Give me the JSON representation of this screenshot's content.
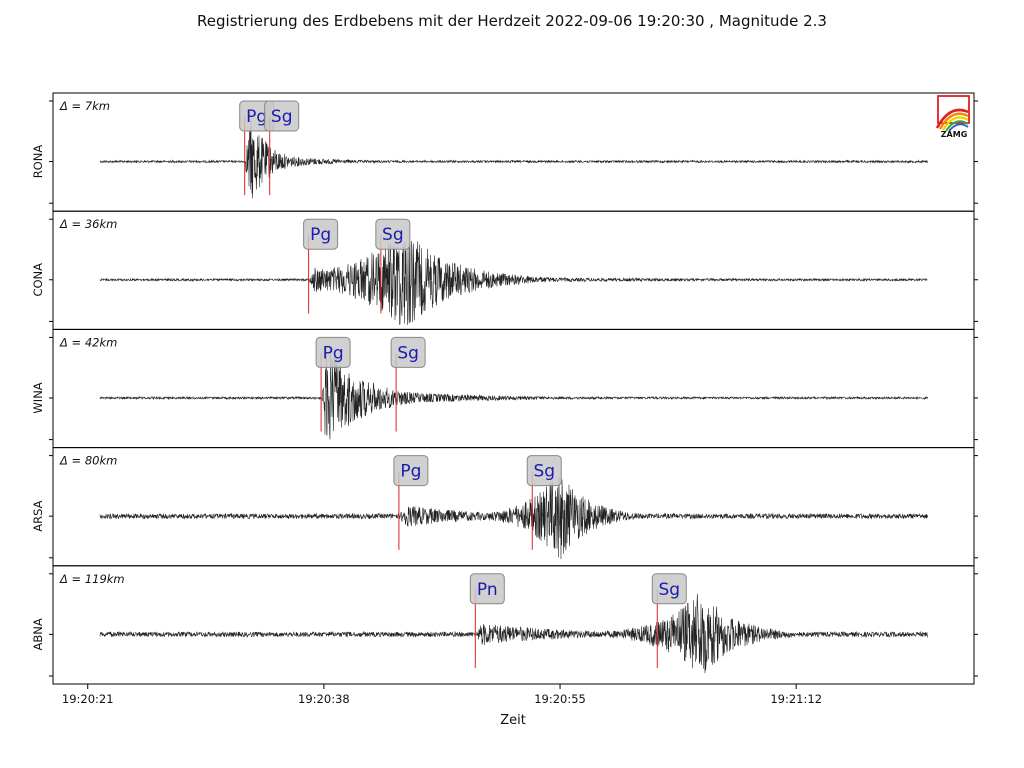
{
  "title": "Registrierung des Erdbebens mit der Herdzeit 2022-09-06 19:20:30 , Magnitude 2.3",
  "logo": {
    "text": "ZAMG"
  },
  "chart_data": {
    "type": "line",
    "xlabel": "Zeit",
    "x_ticks": [
      "19:20:21",
      "19:20:38",
      "19:20:55",
      "19:21:12"
    ],
    "x_tick_seconds": [
      0,
      17,
      34,
      51
    ],
    "x_range_seconds": [
      -2.5,
      63.8
    ],
    "trace_range_seconds": [
      0.9,
      60.4
    ],
    "panels": [
      {
        "station": "RONA",
        "distance": "Δ = 7km",
        "picks": [
          {
            "phase": "Pg",
            "t": 11.3
          },
          {
            "phase": "Sg",
            "t": 13.1
          }
        ],
        "onset": 11.3,
        "peak_t": 11.4,
        "coda": 4,
        "pre_noise": 0.02,
        "scale": 1.0
      },
      {
        "station": "CONA",
        "distance": "Δ = 36km",
        "picks": [
          {
            "phase": "Pg",
            "t": 15.9
          },
          {
            "phase": "Sg",
            "t": 21.1
          }
        ],
        "onset": 15.9,
        "peak_t": 22.5,
        "coda": 10,
        "pre_noise": 0.02,
        "scale": 1.0
      },
      {
        "station": "WINA",
        "distance": "Δ = 42km",
        "picks": [
          {
            "phase": "Pg",
            "t": 16.8
          },
          {
            "phase": "Sg",
            "t": 22.2
          }
        ],
        "onset": 16.8,
        "peak_t": 17.0,
        "coda": 8,
        "pre_noise": 0.02,
        "scale": 1.0
      },
      {
        "station": "ARSA",
        "distance": "Δ = 80km",
        "picks": [
          {
            "phase": "Pg",
            "t": 22.4
          },
          {
            "phase": "Sg",
            "t": 32.0
          }
        ],
        "onset": 22.4,
        "peak_t": 33.8,
        "coda": 6,
        "pre_noise": 0.05,
        "scale": 0.9
      },
      {
        "station": "ABNA",
        "distance": "Δ = 119km",
        "picks": [
          {
            "phase": "Pn",
            "t": 27.9
          },
          {
            "phase": "Sg",
            "t": 41.0
          }
        ],
        "onset": 27.9,
        "peak_t": 43.9,
        "coda": 7,
        "pre_noise": 0.05,
        "scale": 0.9
      }
    ]
  }
}
